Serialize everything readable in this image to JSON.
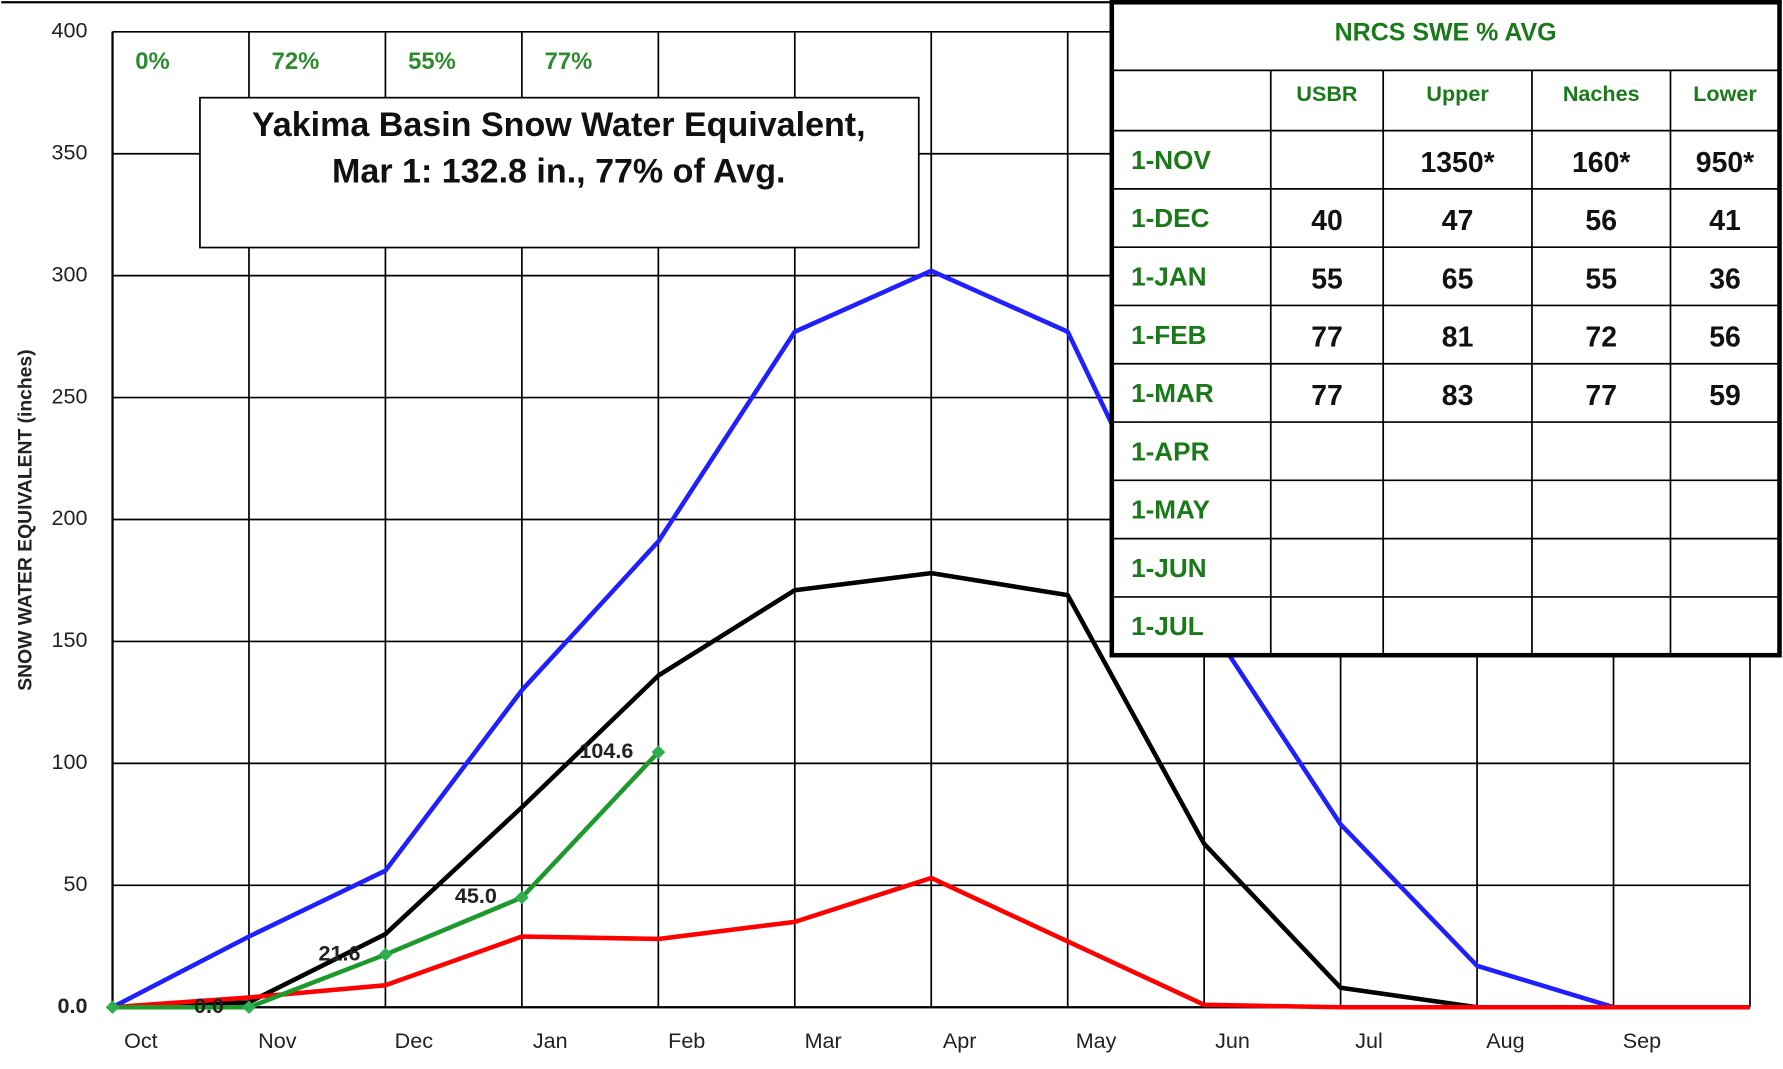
{
  "chart_data": {
    "type": "line",
    "title": [
      "Yakima Basin Snow Water Equivalent,",
      "Mar 1: 132.8 in.,  77% of Avg."
    ],
    "ylabel": "SNOW WATER EQUIVALENT (inches)",
    "categories": [
      "Oct",
      "Nov",
      "Dec",
      "Jan",
      "Feb",
      "Mar",
      "Apr",
      "May",
      "Jun",
      "Jul",
      "Aug",
      "Sep",
      null
    ],
    "ylim": [
      0,
      400
    ],
    "yticks": [
      {
        "value": 0,
        "label": "0.0"
      },
      50,
      100,
      150,
      200,
      250,
      300,
      350,
      400
    ],
    "grid": true,
    "percent_labels": [
      "0%",
      "72%",
      "55%",
      "77%"
    ],
    "series": [
      {
        "color": "#1f1fff",
        "values": [
          0,
          29,
          56,
          130,
          191,
          277,
          302,
          277,
          160,
          75,
          17,
          0,
          0
        ]
      },
      {
        "color": "#000000",
        "values": [
          0,
          2,
          30,
          82,
          136,
          171,
          178,
          169,
          67,
          8,
          0,
          0,
          0
        ]
      },
      {
        "color": "#ff0000",
        "values": [
          0,
          4,
          9,
          29,
          28,
          35,
          53,
          27,
          1,
          0,
          0,
          0,
          0
        ]
      },
      {
        "color": "#1e9a2c",
        "marker": "diamond",
        "values": [
          0,
          0,
          21.6,
          45.0,
          104.6,
          null,
          null,
          null,
          null,
          null,
          null,
          null,
          null
        ],
        "value_labels": [
          null,
          "0.0",
          "21.6",
          "45.0",
          "104.6",
          null,
          null,
          null,
          null,
          null,
          null,
          null,
          null
        ]
      }
    ]
  },
  "table": {
    "title": "NRCS SWE % AVG",
    "columns": [
      "USBR",
      "Upper",
      "Naches",
      "Lower"
    ],
    "rows": [
      {
        "label": "1-NOV",
        "cells": [
          null,
          "1350*",
          "160*",
          "950*"
        ]
      },
      {
        "label": "1-DEC",
        "cells": [
          40,
          47,
          56,
          41
        ]
      },
      {
        "label": "1-JAN",
        "cells": [
          55,
          65,
          55,
          36
        ]
      },
      {
        "label": "1-FEB",
        "cells": [
          77,
          81,
          72,
          56
        ]
      },
      {
        "label": "1-MAR",
        "cells": [
          77,
          83,
          77,
          59
        ]
      },
      {
        "label": "1-APR",
        "cells": [
          null,
          null,
          null,
          null
        ]
      },
      {
        "label": "1-MAY",
        "cells": [
          null,
          null,
          null,
          null
        ]
      },
      {
        "label": "1-JUN",
        "cells": [
          null,
          null,
          null,
          null
        ]
      },
      {
        "label": "1-JUL",
        "cells": [
          null,
          null,
          null,
          null
        ]
      }
    ]
  }
}
